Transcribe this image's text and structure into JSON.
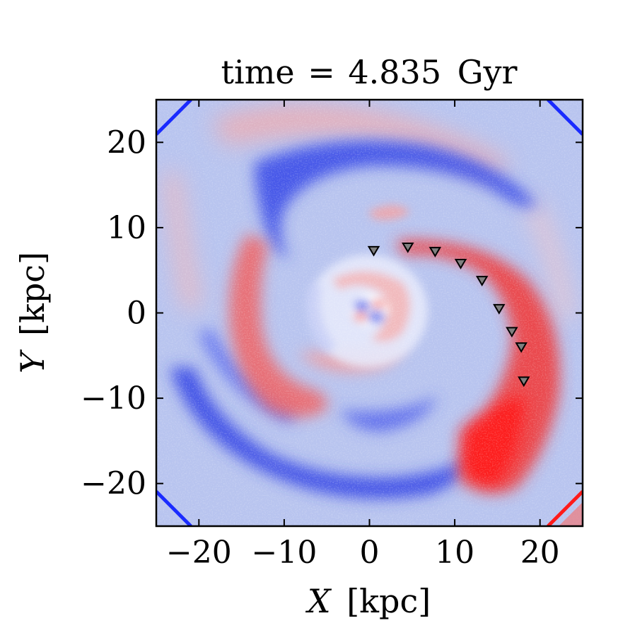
{
  "chart_data": {
    "type": "heatmap",
    "title": "time = 4.835 Gyr",
    "title_parts": {
      "prefix": "time",
      "eq": "=",
      "value": "4.835",
      "unit": "Gyr"
    },
    "xlabel": "X [kpc]",
    "xlabel_parts": {
      "var": "X",
      "unit": "[kpc]"
    },
    "ylabel": "Y [kpc]",
    "ylabel_parts": {
      "var": "Y",
      "unit": "[kpc]"
    },
    "xlim": [
      -25,
      25
    ],
    "ylim": [
      -25,
      25
    ],
    "xticks": [
      -20,
      -10,
      0,
      10,
      20
    ],
    "yticks": [
      -20,
      -10,
      0,
      10,
      20
    ],
    "xtick_labels": [
      "−20",
      "−10",
      "0",
      "10",
      "20"
    ],
    "ytick_labels": [
      "−20",
      "−10",
      "0",
      "10",
      "20"
    ],
    "grid": false,
    "colormap": "bwr",
    "colors": {
      "positive": "#ff1a1a",
      "negative": "#1a2bff",
      "zero": "#ffffff"
    },
    "markers": {
      "shape": "triangle-down",
      "color": "#808080",
      "points": [
        {
          "x": 0.5,
          "y": 7.3
        },
        {
          "x": 4.5,
          "y": 7.7
        },
        {
          "x": 7.7,
          "y": 7.2
        },
        {
          "x": 10.7,
          "y": 5.8
        },
        {
          "x": 13.2,
          "y": 3.8
        },
        {
          "x": 15.2,
          "y": 0.5
        },
        {
          "x": 16.7,
          "y": -2.2
        },
        {
          "x": 17.8,
          "y": -4.0
        },
        {
          "x": 18.1,
          "y": -8.0
        }
      ]
    }
  }
}
